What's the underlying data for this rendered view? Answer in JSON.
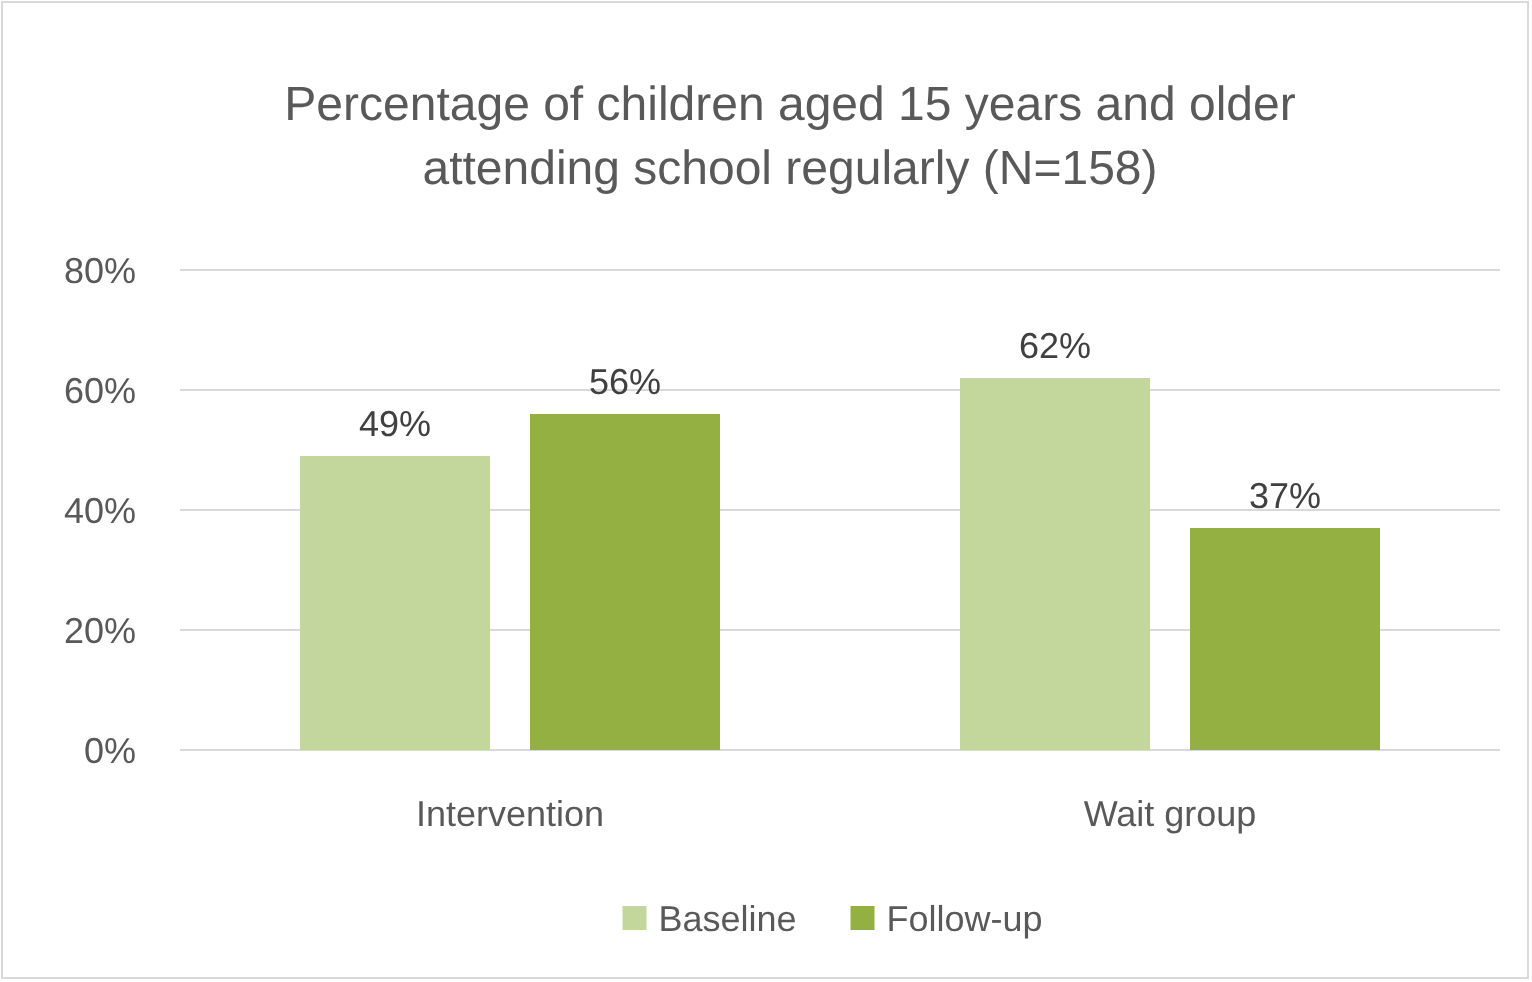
{
  "chart_data": {
    "type": "bar",
    "title": "Percentage of children aged 15 years and older attending school regularly (N=158)",
    "categories": [
      "Intervention",
      "Wait group"
    ],
    "series": [
      {
        "name": "Baseline",
        "color": "#c3d69b",
        "values": [
          49,
          62
        ],
        "value_labels": [
          "49%",
          "62%"
        ]
      },
      {
        "name": "Follow-up",
        "color": "#94b042",
        "values": [
          56,
          37
        ],
        "value_labels": [
          "56%",
          "37%"
        ]
      }
    ],
    "ylim": [
      0,
      80
    ],
    "yticks": [
      {
        "value": 0,
        "label": "0%"
      },
      {
        "value": 20,
        "label": "20%"
      },
      {
        "value": 40,
        "label": "40%"
      },
      {
        "value": 60,
        "label": "60%"
      },
      {
        "value": 80,
        "label": "80%"
      }
    ],
    "grid": "y",
    "legend": "bottom"
  }
}
